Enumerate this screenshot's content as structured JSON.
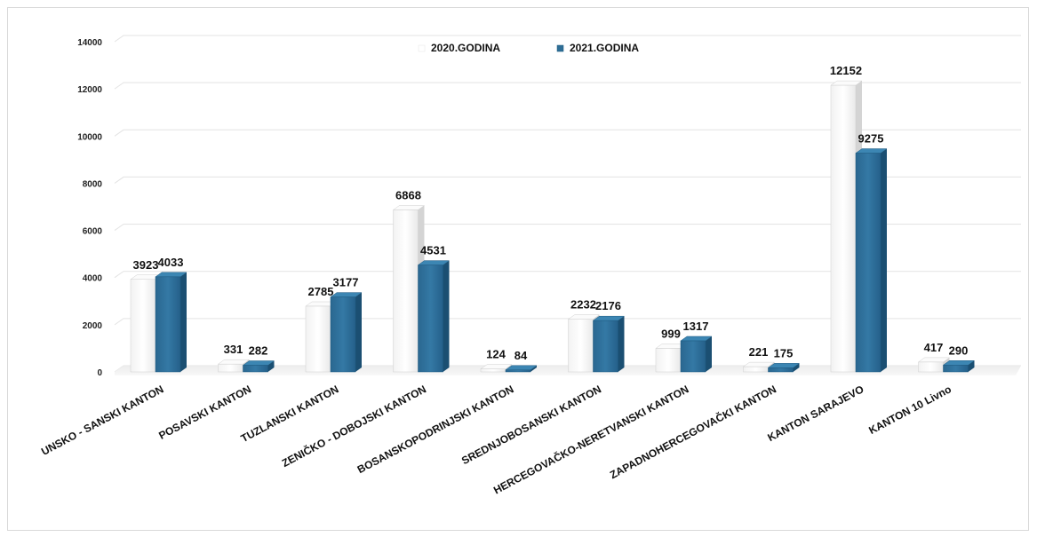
{
  "chart_data": {
    "type": "bar",
    "categories": [
      "UNSKO - SANSKI KANTON",
      "POSAVSKI KANTON",
      "TUZLANSKI KANTON",
      "ZENIČKO - DOBOJSKI KANTON",
      "BOSANSKOPODRINJSKI KANTON",
      "SREDNJOBOSANSKI KANTON",
      "HERCEGOVAČKO-NERETVANSKI KANTON",
      "ZAPADNOHERCEGOVAČKI KANTON",
      "KANTON SARAJEVO",
      "KANTON 10 Livno"
    ],
    "series": [
      {
        "name": "2020.GODINA",
        "values": [
          3923,
          331,
          2785,
          6868,
          124,
          2232,
          999,
          221,
          12152,
          417
        ]
      },
      {
        "name": "2021.GODINA",
        "values": [
          4033,
          282,
          3177,
          4531,
          84,
          2176,
          1317,
          175,
          9275,
          290
        ]
      }
    ],
    "yticks": [
      0,
      2000,
      4000,
      6000,
      8000,
      10000,
      12000,
      14000
    ],
    "ylim": [
      0,
      14000
    ],
    "grid": true,
    "legend_position": "top-center",
    "colors": {
      "2020.GODINA": "#ffffff",
      "2021.GODINA": "#2e6e96"
    }
  }
}
